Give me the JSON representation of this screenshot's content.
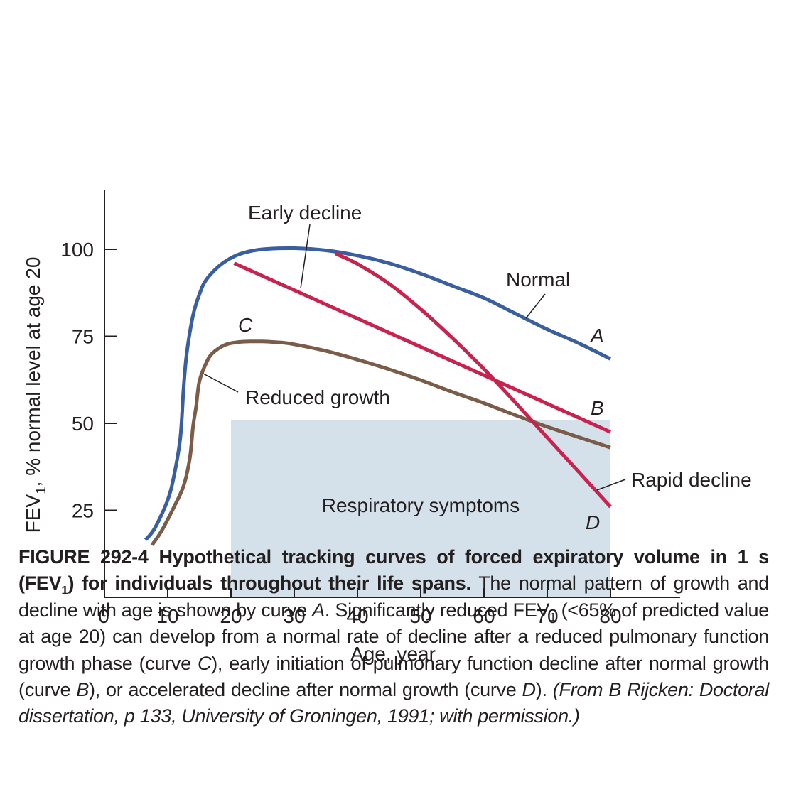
{
  "chart_data": {
    "type": "line",
    "xlabel": "Age, year",
    "ylabel": "FEV",
    "ylabel_sub": "1",
    "ylabel_rest": ", % normal level at age 20",
    "x_ticks": [
      0,
      10,
      20,
      30,
      40,
      50,
      60,
      70,
      80
    ],
    "y_ticks": [
      25,
      50,
      75,
      100
    ],
    "xlim": [
      0,
      91
    ],
    "ylim": [
      0,
      117
    ],
    "grid": false,
    "colors": {
      "normal": "#3a5fa0",
      "reduced": "#7a5c48",
      "decline": "#c8234e",
      "shade": "#d4e0ea",
      "axis": "#231f20"
    },
    "shaded_region": {
      "label": "Respiratory symptoms",
      "x": [
        20,
        80
      ],
      "y": [
        0,
        51
      ]
    },
    "series": [
      {
        "key": "A",
        "name": "Normal",
        "letter": "A",
        "color": "#3a5fa0",
        "x": [
          6.5,
          8,
          10,
          11,
          12,
          12.5,
          13,
          14,
          15,
          16,
          18,
          20,
          22,
          25,
          30,
          35,
          40,
          45,
          50,
          55,
          60,
          65,
          70,
          75,
          80
        ],
        "y": [
          16.5,
          20,
          28,
          35,
          46,
          60,
          70,
          81,
          87,
          91,
          95,
          97.5,
          99,
          100,
          100.3,
          99.7,
          98.2,
          96,
          93,
          89.5,
          86,
          81.5,
          77,
          73,
          68.5
        ]
      },
      {
        "key": "B",
        "name": "Early decline",
        "letter": "B",
        "color": "#c8234e",
        "x": [
          20.5,
          80
        ],
        "y": [
          96,
          47.5
        ]
      },
      {
        "key": "C",
        "name": "Reduced growth",
        "letter": "C",
        "color": "#7a5c48",
        "x": [
          7.5,
          9,
          11,
          12.5,
          13.5,
          14,
          14.5,
          15,
          16,
          17,
          19,
          21,
          23,
          25,
          28,
          30,
          35,
          40,
          45,
          50,
          55,
          60,
          65,
          70,
          75,
          80
        ],
        "y": [
          15,
          19,
          26,
          32,
          40,
          49,
          55,
          62,
          67,
          70,
          72.5,
          73.3,
          73.5,
          73.5,
          73.2,
          72.7,
          70.8,
          68.3,
          65.5,
          62.4,
          59,
          55.8,
          52.3,
          49,
          46,
          43
        ]
      },
      {
        "key": "D",
        "name": "Rapid decline",
        "letter": "D",
        "color": "#c8234e",
        "x": [
          36.5,
          40,
          45,
          50,
          55,
          60,
          65,
          70,
          75,
          80
        ],
        "y": [
          98.8,
          95.8,
          90.1,
          82.8,
          74.5,
          65.6,
          55.9,
          45.9,
          36,
          26
        ]
      }
    ],
    "annotations": [
      {
        "text": "Early decline"
      },
      {
        "text": "Normal"
      },
      {
        "text": "Reduced growth"
      },
      {
        "text": "Rapid decline"
      }
    ]
  },
  "caption": {
    "label": "FIGURE 292-4",
    "bold_a": "Hypothetical tracking curves of forced expiratory volume in 1 s (FEV",
    "sub1": "1",
    "bold_b": ") for individuals throughout their life spans.",
    "text_a": "The normal pattern of growth and decline with age is shown by curve",
    "curve_a": "A",
    "text_b": ". Significantly reduced FEV",
    "sub2": "1",
    "text_c": "(<65% of predicted value at age 20) can develop from a normal rate of decline after a reduced pulmonary function growth phase (curve",
    "curve_c": "C",
    "text_d": "), early initiation of pulmonary function decline after normal growth (curve",
    "curve_b": "B",
    "text_e": "), or accelerated decline after normal growth (curve",
    "curve_d": "D",
    "text_f": ").",
    "source": "(From B Rijcken: Doctoral dissertation, p 133, University of Groningen, 1991; with permission.)"
  }
}
